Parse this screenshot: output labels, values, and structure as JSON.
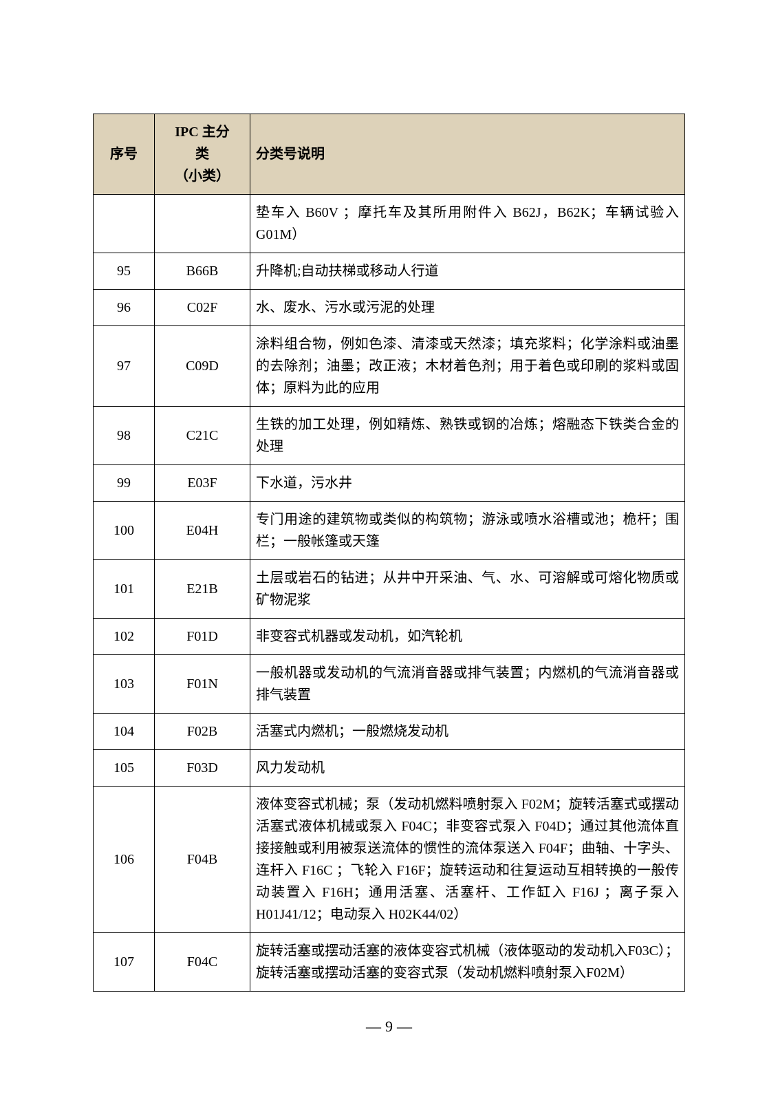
{
  "table": {
    "header_bg": "#ddd2b9",
    "border_color": "#000000",
    "columns": [
      {
        "key": "seq",
        "label": "序号",
        "width": 72,
        "align": "center"
      },
      {
        "key": "ipc",
        "label_line1": "IPC 主分",
        "label_line2": "类",
        "label_line3": "（小类）",
        "width": 122,
        "align": "center"
      },
      {
        "key": "desc",
        "label": "分类号说明",
        "align": "justify"
      }
    ],
    "rows": [
      {
        "seq": "",
        "ipc": "",
        "desc": "垫车入 B60V ；摩托车及其所用附件入 B62J，B62K；车辆试验入 G01M）"
      },
      {
        "seq": "95",
        "ipc": "B66B",
        "desc": "升降机;自动扶梯或移动人行道"
      },
      {
        "seq": "96",
        "ipc": "C02F",
        "desc": "水、废水、污水或污泥的处理"
      },
      {
        "seq": "97",
        "ipc": "C09D",
        "desc": "涂料组合物，例如色漆、清漆或天然漆；填充浆料；化学涂料或油墨的去除剂；油墨；改正液；木材着色剂；用于着色或印刷的浆料或固体；原料为此的应用"
      },
      {
        "seq": "98",
        "ipc": "C21C",
        "desc": "生铁的加工处理，例如精炼、熟铁或钢的冶炼；熔融态下铁类合金的处理"
      },
      {
        "seq": "99",
        "ipc": "E03F",
        "desc": "下水道，污水井"
      },
      {
        "seq": "100",
        "ipc": "E04H",
        "desc": "专门用途的建筑物或类似的构筑物；游泳或喷水浴槽或池；桅杆；围栏；一般帐篷或天篷"
      },
      {
        "seq": "101",
        "ipc": "E21B",
        "desc": "土层或岩石的钻进；从井中开采油、气、水、可溶解或可熔化物质或矿物泥浆"
      },
      {
        "seq": "102",
        "ipc": "F01D",
        "desc": "非变容式机器或发动机，如汽轮机"
      },
      {
        "seq": "103",
        "ipc": "F01N",
        "desc": "一般机器或发动机的气流消音器或排气装置；内燃机的气流消音器或排气装置"
      },
      {
        "seq": "104",
        "ipc": "F02B",
        "desc": "活塞式内燃机；一般燃烧发动机"
      },
      {
        "seq": "105",
        "ipc": "F03D",
        "desc": "风力发动机"
      },
      {
        "seq": "106",
        "ipc": "F04B",
        "desc": "液体变容式机械；泵（发动机燃料喷射泵入 F02M；旋转活塞式或摆动活塞式液体机械或泵入 F04C；非变容式泵入 F04D；通过其他流体直接接触或利用被泵送流体的惯性的流体泵送入 F04F；曲轴、十字头、连杆入 F16C ；飞轮入 F16F；旋转运动和往复运动互相转换的一般传动装置入 F16H；通用活塞、活塞杆、工作缸入 F16J ；离子泵入H01J41/12；电动泵入 H02K44/02）"
      },
      {
        "seq": "107",
        "ipc": "F04C",
        "desc": "旋转活塞或摆动活塞的液体变容式机械（液体驱动的发动机入F03C）；旋转活塞或摆动活塞的变容式泵（发动机燃料喷射泵入F02M）"
      }
    ]
  },
  "page_number": "9",
  "typography": {
    "body_fontsize": 20,
    "line_height": 1.6,
    "header_font_weight": "bold"
  }
}
